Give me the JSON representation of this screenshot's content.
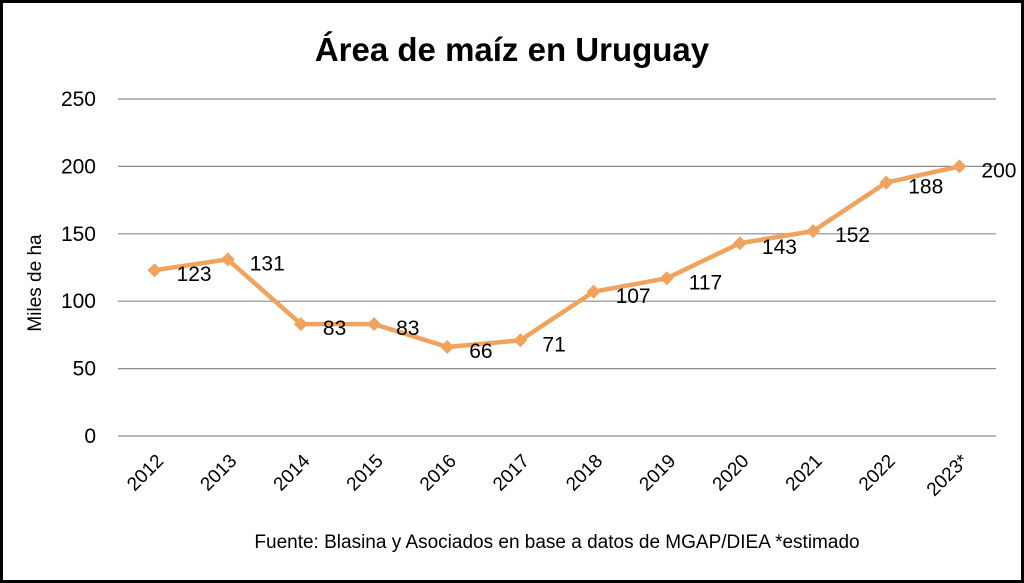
{
  "chart_data": {
    "type": "line",
    "title": "Área de maíz en Uruguay",
    "xlabel": "",
    "ylabel": "Miles de ha",
    "categories": [
      "2012",
      "2013",
      "2014",
      "2015",
      "2016",
      "2017",
      "2018",
      "2019",
      "2020",
      "2021",
      "2022",
      "2023*"
    ],
    "series": [
      {
        "name": "Área de maíz",
        "values": [
          123,
          131,
          83,
          83,
          66,
          71,
          107,
          117,
          143,
          152,
          188,
          200
        ]
      }
    ],
    "data_labels": [
      "123",
      "131",
      "83",
      "83",
      "66",
      "71",
      "107",
      "117",
      "143",
      "152",
      "188",
      "200"
    ],
    "ylim": [
      0,
      250
    ],
    "yticks": [
      0,
      50,
      100,
      150,
      200,
      250
    ],
    "ytick_labels": [
      "0",
      "50",
      "100",
      "150",
      "200",
      "250"
    ],
    "grid": true,
    "legend": "none",
    "source": "Fuente: Blasina y Asociados en base a datos de MGAP/DIEA *estimado",
    "colors": {
      "line": "#F0A35E",
      "grid": "#8C8C8C",
      "axis": "#8C8C8C"
    }
  }
}
